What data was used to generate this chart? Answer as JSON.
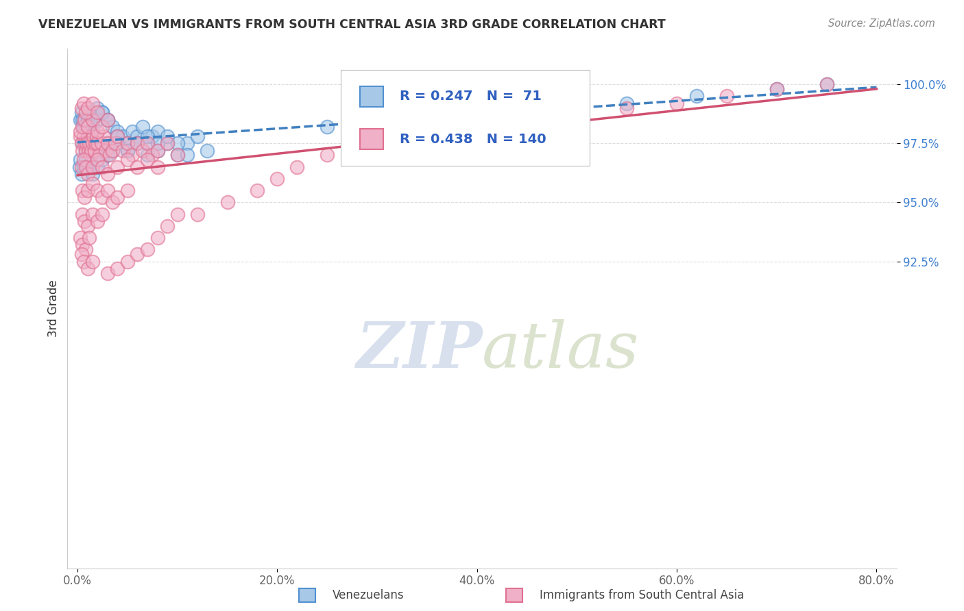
{
  "title": "VENEZUELAN VS IMMIGRANTS FROM SOUTH CENTRAL ASIA 3RD GRADE CORRELATION CHART",
  "source": "Source: ZipAtlas.com",
  "xlabel_values": [
    0.0,
    20.0,
    40.0,
    60.0,
    80.0
  ],
  "ylabel_ticks": [
    "100.0%",
    "97.5%",
    "95.0%",
    "92.5%"
  ],
  "ylabel_values": [
    100.0,
    97.5,
    95.0,
    92.5
  ],
  "ylabel_label": "3rd Grade",
  "xlim": [
    -1.0,
    82.0
  ],
  "ylim": [
    79.5,
    101.5
  ],
  "blue_R": 0.247,
  "blue_N": 71,
  "pink_R": 0.438,
  "pink_N": 140,
  "blue_label": "Venezuelans",
  "pink_label": "Immigrants from South Central Asia",
  "blue_fill": "#a8c8e8",
  "pink_fill": "#f0b0c8",
  "blue_edge": "#5090d0",
  "pink_edge": "#e07090",
  "blue_line": "#4080c0",
  "pink_line": "#d05070",
  "watermark_color": "#c8d4e8",
  "legend_text_color": "#3060c0",
  "ytick_color": "#4080d0",
  "xtick_color": "#666666",
  "title_color": "#333333",
  "source_color": "#888888",
  "ylabel_color": "#333333",
  "grid_color": "#dddddd",
  "blue_scatter_x": [
    1.2,
    1.5,
    2.0,
    2.5,
    3.0,
    3.5,
    4.0,
    4.5,
    5.0,
    5.5,
    6.0,
    6.5,
    7.0,
    7.5,
    8.0,
    0.5,
    0.8,
    1.0,
    1.5,
    2.0,
    2.5,
    3.0,
    4.0,
    5.0,
    6.0,
    7.0,
    8.0,
    9.0,
    10.0,
    11.0,
    12.0,
    0.3,
    0.4,
    0.5,
    0.6,
    0.7,
    0.8,
    1.0,
    1.2,
    1.5,
    2.0,
    2.5,
    3.0,
    0.2,
    0.3,
    0.4,
    0.6,
    0.8,
    1.0,
    1.5,
    2.0,
    2.5,
    3.0,
    3.5,
    4.0,
    5.0,
    6.0,
    7.0,
    8.0,
    9.0,
    10.0,
    11.0,
    13.0,
    25.0,
    35.0,
    45.0,
    55.0,
    62.0,
    70.0,
    75.0
  ],
  "blue_scatter_y": [
    98.2,
    98.5,
    99.0,
    98.8,
    98.5,
    98.2,
    98.0,
    97.8,
    97.5,
    98.0,
    97.8,
    98.2,
    97.5,
    97.8,
    98.0,
    97.5,
    97.2,
    97.8,
    97.5,
    97.0,
    97.2,
    97.5,
    97.8,
    97.2,
    97.5,
    97.0,
    97.2,
    97.5,
    97.0,
    97.5,
    97.8,
    98.5,
    98.8,
    98.5,
    98.2,
    98.5,
    98.2,
    98.5,
    98.8,
    98.2,
    98.5,
    98.8,
    98.5,
    96.5,
    96.8,
    96.2,
    96.5,
    96.8,
    96.5,
    96.2,
    96.5,
    96.8,
    97.0,
    97.2,
    97.5,
    97.2,
    97.5,
    97.8,
    97.5,
    97.8,
    97.5,
    97.0,
    97.2,
    98.2,
    98.5,
    98.8,
    99.2,
    99.5,
    99.8,
    100.0
  ],
  "pink_scatter_x": [
    0.3,
    0.4,
    0.5,
    0.6,
    0.7,
    0.8,
    0.9,
    1.0,
    1.1,
    1.2,
    1.3,
    1.4,
    1.5,
    1.6,
    1.7,
    1.8,
    1.9,
    2.0,
    2.2,
    2.4,
    2.6,
    2.8,
    3.0,
    3.2,
    3.5,
    3.8,
    4.0,
    4.5,
    5.0,
    5.5,
    6.0,
    6.5,
    7.0,
    7.5,
    8.0,
    9.0,
    10.0,
    0.4,
    0.6,
    0.8,
    1.0,
    1.5,
    2.0,
    2.5,
    3.0,
    4.0,
    5.0,
    6.0,
    7.0,
    8.0,
    0.5,
    0.7,
    1.0,
    1.5,
    2.0,
    2.5,
    3.0,
    3.5,
    4.0,
    5.0,
    0.3,
    0.5,
    0.7,
    1.0,
    1.5,
    2.0,
    2.5,
    3.0,
    0.4,
    0.6,
    0.8,
    1.0,
    1.5,
    2.0,
    0.5,
    0.7,
    1.0,
    1.5,
    2.0,
    2.5,
    0.3,
    0.5,
    0.8,
    1.2,
    0.4,
    0.6,
    1.0,
    1.5,
    3.0,
    4.0,
    5.0,
    6.0,
    7.0,
    8.0,
    9.0,
    10.0,
    12.0,
    15.0,
    18.0,
    20.0,
    22.0,
    25.0,
    28.0,
    30.0,
    35.0,
    40.0,
    45.0,
    50.0,
    55.0,
    60.0,
    65.0,
    70.0,
    75.0
  ],
  "pink_scatter_y": [
    97.8,
    97.5,
    97.2,
    97.8,
    97.5,
    97.2,
    97.5,
    97.8,
    97.2,
    97.5,
    97.0,
    97.2,
    97.5,
    97.8,
    97.2,
    97.5,
    97.8,
    97.5,
    97.0,
    97.5,
    97.8,
    97.2,
    97.5,
    97.0,
    97.2,
    97.5,
    97.8,
    97.2,
    97.5,
    97.0,
    97.5,
    97.2,
    97.5,
    97.0,
    97.2,
    97.5,
    97.0,
    96.5,
    96.8,
    96.5,
    96.2,
    96.5,
    96.8,
    96.5,
    96.2,
    96.5,
    96.8,
    96.5,
    96.8,
    96.5,
    95.5,
    95.2,
    95.5,
    95.8,
    95.5,
    95.2,
    95.5,
    95.0,
    95.2,
    95.5,
    98.0,
    98.2,
    98.5,
    98.2,
    98.5,
    98.0,
    98.2,
    98.5,
    99.0,
    99.2,
    98.8,
    99.0,
    99.2,
    98.8,
    94.5,
    94.2,
    94.0,
    94.5,
    94.2,
    94.5,
    93.5,
    93.2,
    93.0,
    93.5,
    92.8,
    92.5,
    92.2,
    92.5,
    92.0,
    92.2,
    92.5,
    92.8,
    93.0,
    93.5,
    94.0,
    94.5,
    94.5,
    95.0,
    95.5,
    96.0,
    96.5,
    97.0,
    97.5,
    97.8,
    98.0,
    98.2,
    98.5,
    98.8,
    99.0,
    99.2,
    99.5,
    99.8,
    100.0
  ]
}
